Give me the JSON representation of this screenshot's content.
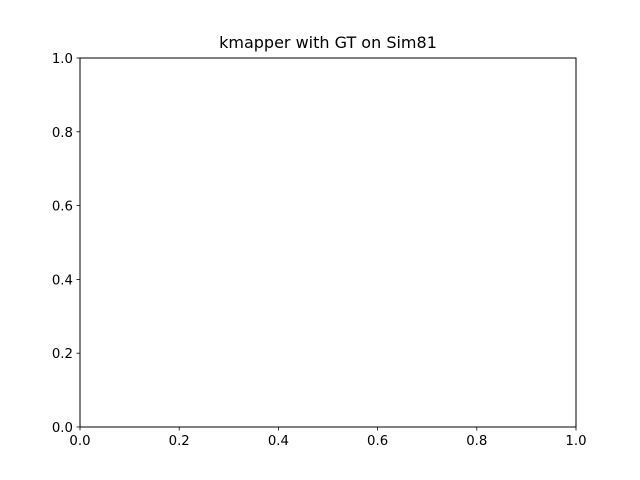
{
  "chart_data": {
    "type": "scatter",
    "title": "kmapper with GT on Sim81",
    "xlabel": "",
    "ylabel": "",
    "xlim": [
      0.0,
      1.0
    ],
    "ylim": [
      0.0,
      1.0
    ],
    "xticks": [
      "0.0",
      "0.2",
      "0.4",
      "0.6",
      "0.8",
      "1.0"
    ],
    "yticks": [
      "0.0",
      "0.2",
      "0.4",
      "0.6",
      "0.8",
      "1.0"
    ],
    "grid": false,
    "series": []
  }
}
